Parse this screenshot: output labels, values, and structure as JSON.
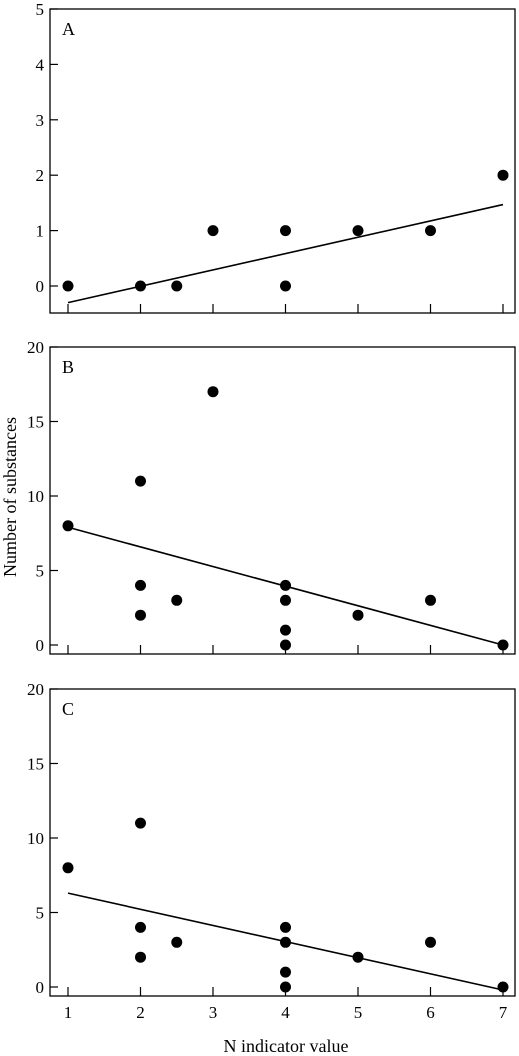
{
  "chart_data": [
    {
      "type": "scatter",
      "panel_label": "A",
      "ylim": [
        0,
        5
      ],
      "yticks": [
        0,
        1,
        2,
        3,
        4,
        5
      ],
      "xlim": [
        1,
        7
      ],
      "xticks": [
        1,
        2,
        3,
        4,
        5,
        6,
        7
      ],
      "show_x_tick_labels": false,
      "points": [
        {
          "x": 1,
          "y": 0
        },
        {
          "x": 2,
          "y": 0
        },
        {
          "x": 2.5,
          "y": 0
        },
        {
          "x": 3,
          "y": 1
        },
        {
          "x": 4,
          "y": 1
        },
        {
          "x": 4,
          "y": 0
        },
        {
          "x": 5,
          "y": 1
        },
        {
          "x": 6,
          "y": 1
        },
        {
          "x": 7,
          "y": 2
        }
      ],
      "trendline": {
        "x": [
          1,
          7
        ],
        "y": [
          -0.3,
          1.47
        ]
      }
    },
    {
      "type": "scatter",
      "panel_label": "B",
      "ylim": [
        0,
        20
      ],
      "yticks": [
        0,
        5,
        10,
        15,
        20
      ],
      "xlim": [
        1,
        7
      ],
      "xticks": [
        1,
        2,
        3,
        4,
        5,
        6,
        7
      ],
      "show_x_tick_labels": false,
      "points": [
        {
          "x": 1,
          "y": 8
        },
        {
          "x": 2,
          "y": 11
        },
        {
          "x": 2,
          "y": 4
        },
        {
          "x": 2,
          "y": 2
        },
        {
          "x": 2.5,
          "y": 3
        },
        {
          "x": 3,
          "y": 17
        },
        {
          "x": 4,
          "y": 4
        },
        {
          "x": 4,
          "y": 3
        },
        {
          "x": 4,
          "y": 1
        },
        {
          "x": 4,
          "y": 0
        },
        {
          "x": 5,
          "y": 2
        },
        {
          "x": 6,
          "y": 3
        },
        {
          "x": 7,
          "y": 0
        }
      ],
      "trendline": {
        "x": [
          1,
          7
        ],
        "y": [
          7.9,
          0
        ]
      }
    },
    {
      "type": "scatter",
      "panel_label": "C",
      "ylim": [
        0,
        20
      ],
      "yticks": [
        0,
        5,
        10,
        15,
        20
      ],
      "xlim": [
        1,
        7
      ],
      "xticks": [
        1,
        2,
        3,
        4,
        5,
        6,
        7
      ],
      "show_x_tick_labels": true,
      "points": [
        {
          "x": 1,
          "y": 8
        },
        {
          "x": 2,
          "y": 11
        },
        {
          "x": 2,
          "y": 4
        },
        {
          "x": 2,
          "y": 2
        },
        {
          "x": 2.5,
          "y": 3
        },
        {
          "x": 4,
          "y": 4
        },
        {
          "x": 4,
          "y": 3
        },
        {
          "x": 4,
          "y": 1
        },
        {
          "x": 4,
          "y": 0
        },
        {
          "x": 5,
          "y": 2
        },
        {
          "x": 6,
          "y": 3
        },
        {
          "x": 7,
          "y": 0
        }
      ],
      "trendline": {
        "x": [
          1,
          7
        ],
        "y": [
          6.3,
          -0.2
        ]
      }
    }
  ],
  "xlabel": "N indicator value",
  "ylabel": "Number of substances"
}
